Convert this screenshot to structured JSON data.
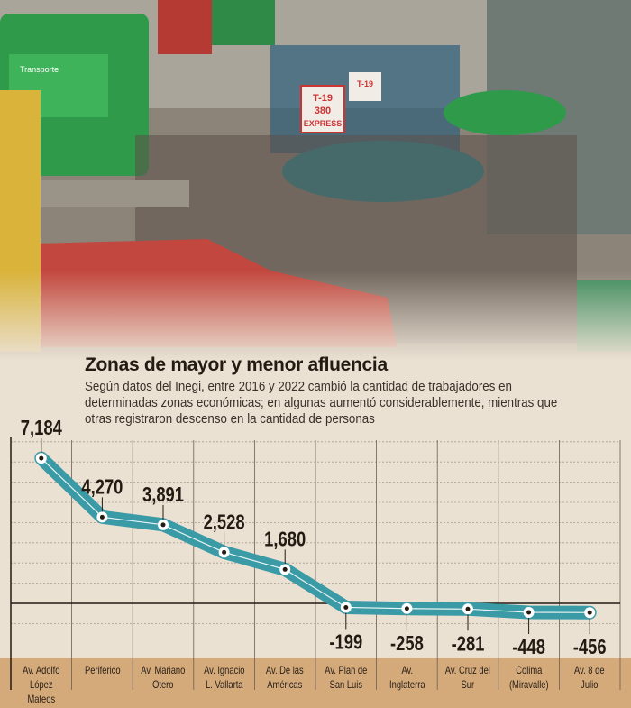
{
  "photo": {
    "bus_text": "Transporte",
    "route_sign": [
      "T-19",
      "380",
      "EXPRESS"
    ],
    "route_sign_2": "T-19"
  },
  "title": "Zonas de mayor y menor afluencia",
  "subtitle": "Según datos del Inegi, entre 2016 y 2022 cambió la cantidad de trabajadores en determinadas zonas económicas; en algunas aumentó considerablemente, mientras que otras registraron descenso en la cantidad de personas",
  "chart_data": {
    "type": "line",
    "categories": [
      "Av. Adolfo López Mateos",
      "Periférico",
      "Av. Mariano Otero",
      "Av. Ignacio L. Vallarta",
      "Av. De las Américas",
      "Av. Plan de San Luis",
      "Av. Inglaterra",
      "Av. Cruz del Sur",
      "Colima (Miravalle)",
      "Av. 8 de Julio"
    ],
    "values": [
      7184,
      4270,
      3891,
      2528,
      1680,
      -199,
      -258,
      -281,
      -448,
      -456
    ],
    "data_labels": [
      "7,184",
      "4,270",
      "3,891",
      "2,528",
      "1,680",
      "-199",
      "-258",
      "-281",
      "-448",
      "-456"
    ],
    "ylim": [
      -1000,
      8000
    ],
    "grid": true,
    "colors": {
      "line": "#3a9ba7",
      "band": "#d4aa7b",
      "background": "#ebe1d3"
    }
  }
}
